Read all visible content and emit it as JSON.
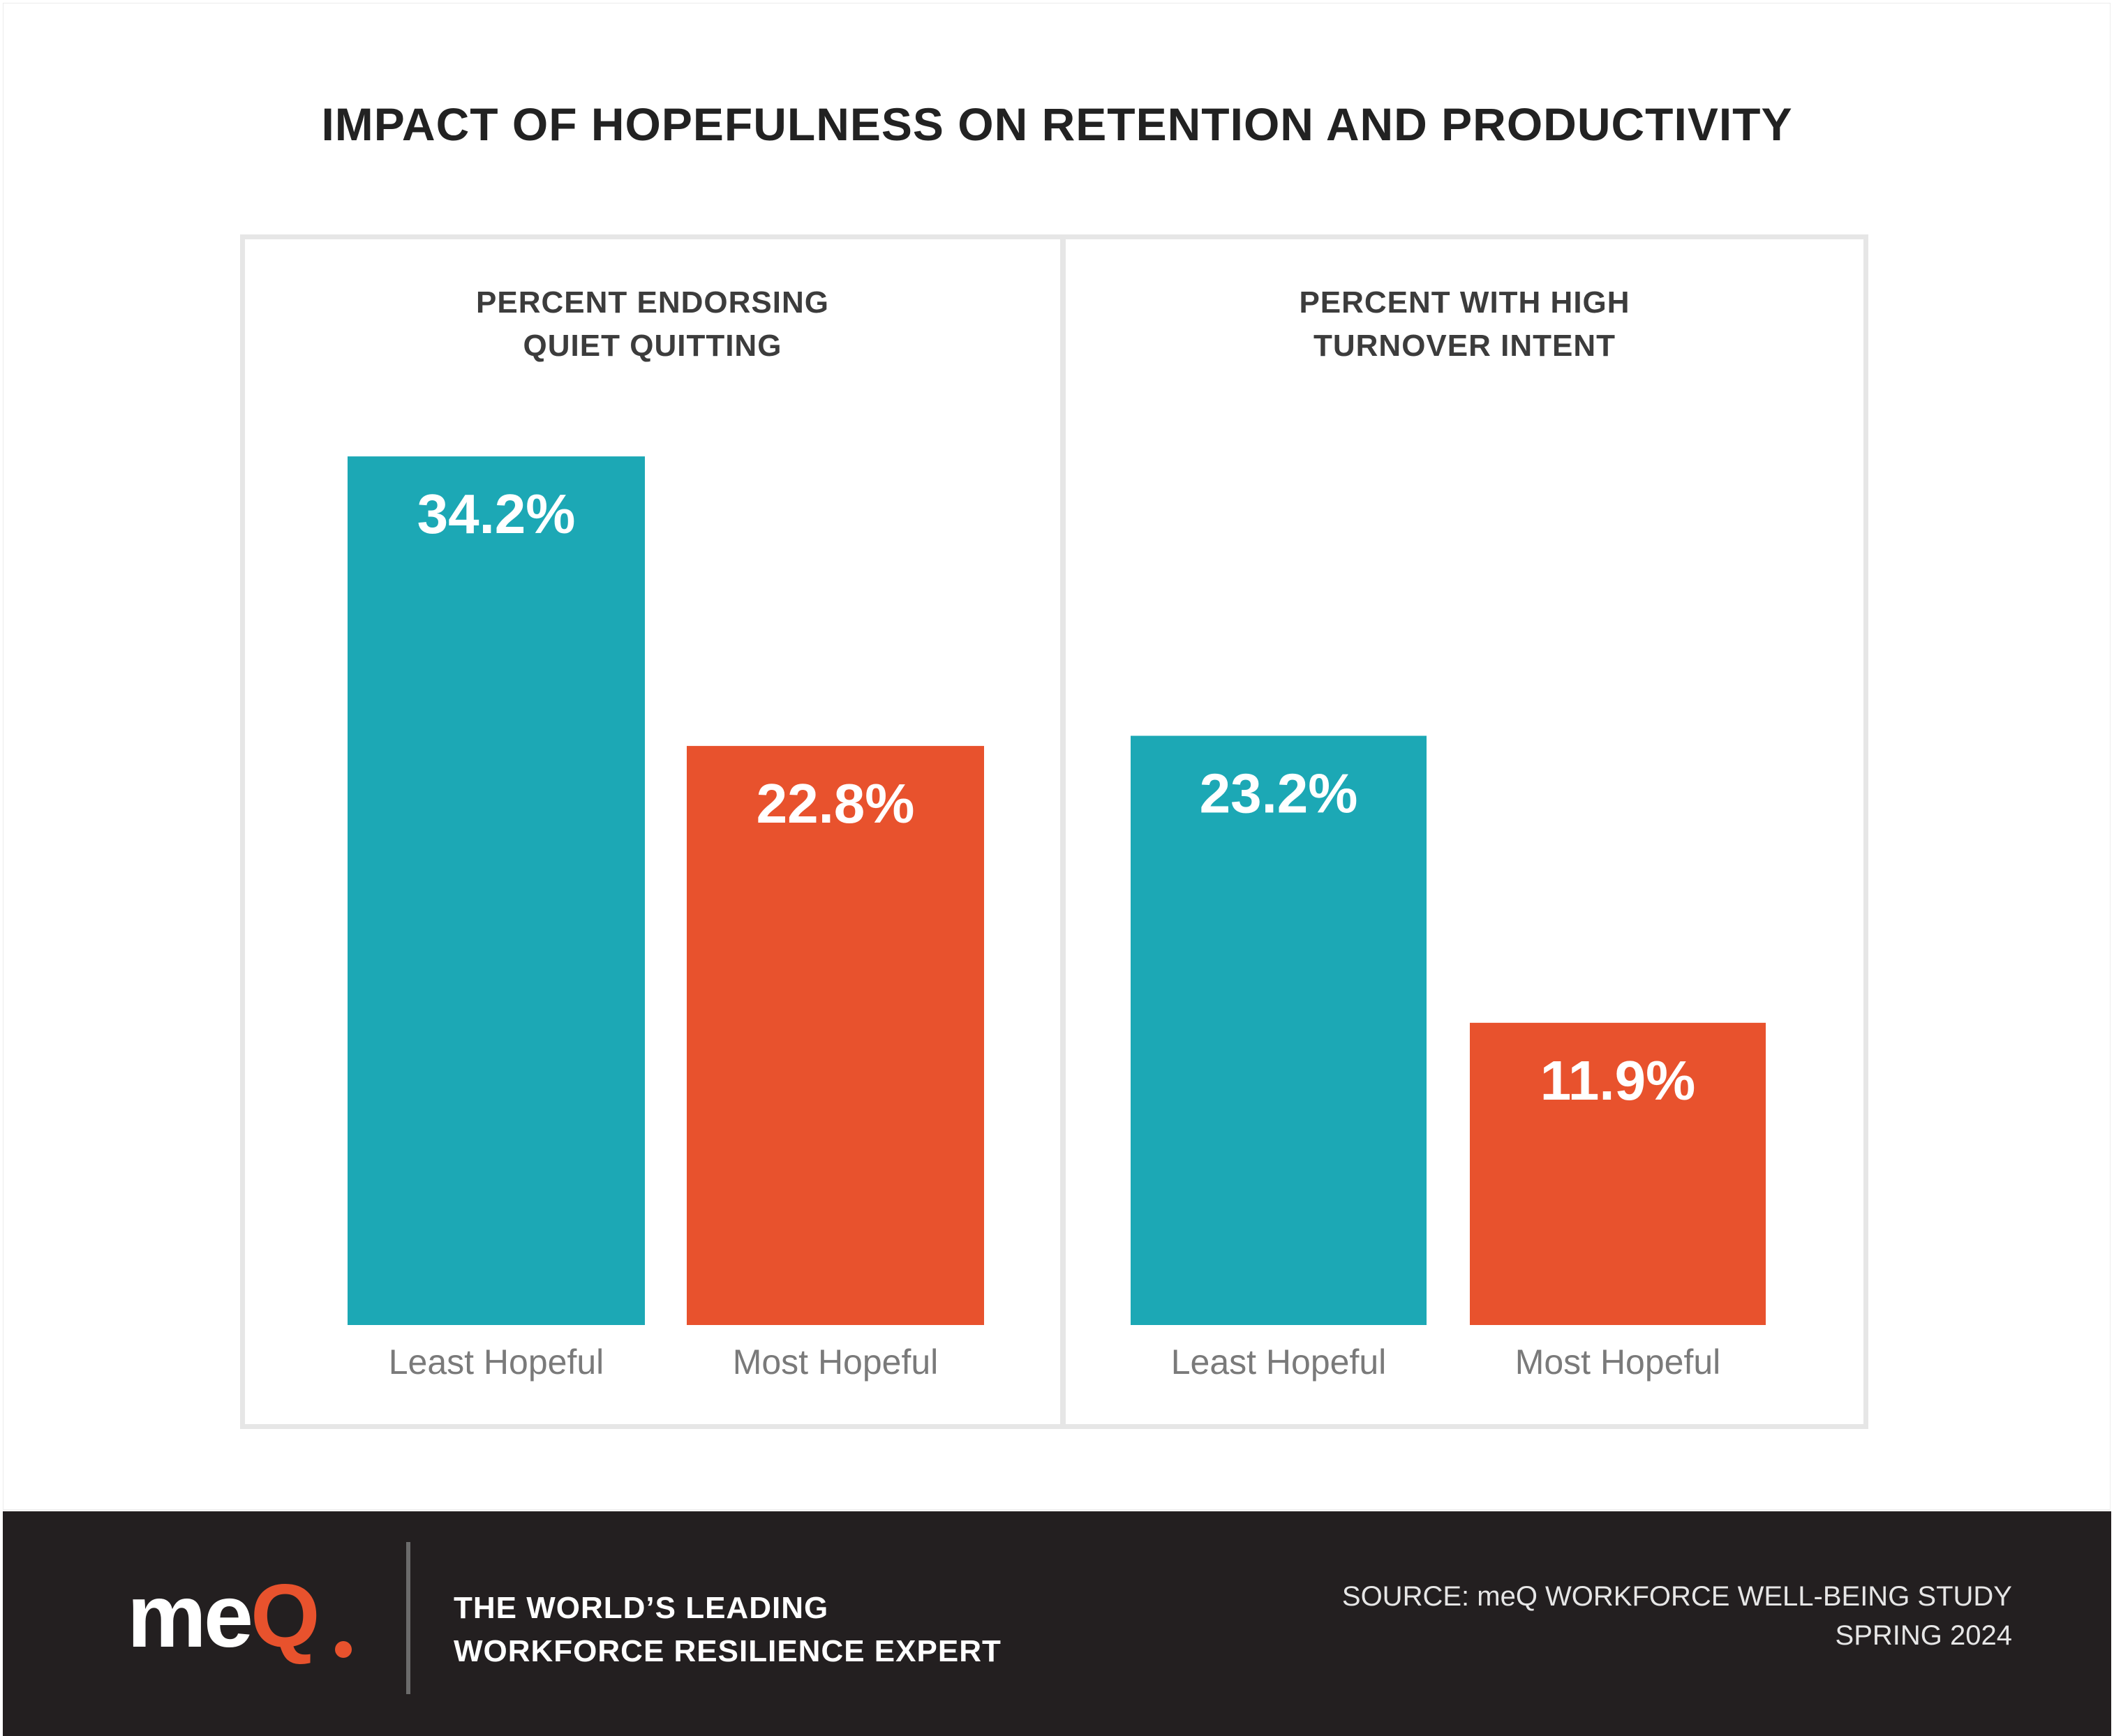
{
  "title": "IMPACT OF HOPEFULNESS ON RETENTION AND PRODUCTIVITY",
  "colors": {
    "least": "#1ca8b5",
    "most": "#e8522d",
    "footer_bg": "#231f20",
    "panel_border": "#e6e6e6"
  },
  "chart_data": [
    {
      "type": "bar",
      "title": "PERCENT ENDORSING\nQUIET QUITTING",
      "categories": [
        "Least Hopeful",
        "Most Hopeful"
      ],
      "values": [
        34.2,
        22.8
      ],
      "value_labels": [
        "34.2%",
        "22.8%"
      ],
      "ylim": [
        0,
        40
      ],
      "grid": false
    },
    {
      "type": "bar",
      "title": "PERCENT WITH HIGH\nTURNOVER INTENT",
      "categories": [
        "Least Hopeful",
        "Most Hopeful"
      ],
      "values": [
        23.2,
        11.9
      ],
      "value_labels": [
        "23.2%",
        "11.9%"
      ],
      "ylim": [
        0,
        40
      ],
      "grid": false
    }
  ],
  "footer": {
    "logo": "meQ",
    "tagline": "THE WORLD’S LEADING\nWORKFORCE RESILIENCE EXPERT",
    "source": "SOURCE: meQ WORKFORCE WELL-BEING STUDY\nSPRING 2024"
  }
}
